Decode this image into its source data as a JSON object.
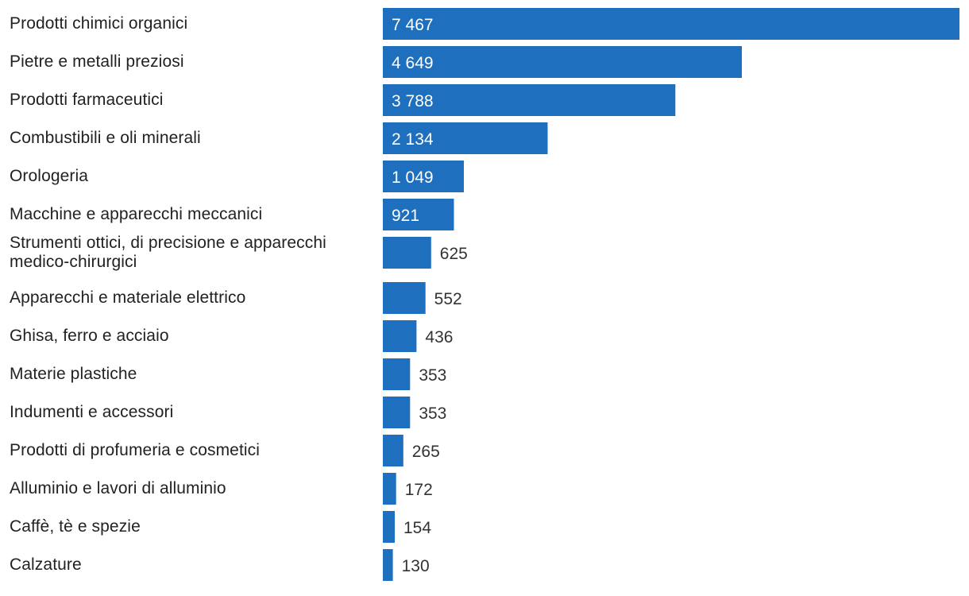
{
  "chart_data": {
    "type": "bar",
    "orientation": "horizontal",
    "categories": [
      "Prodotti chimici organici",
      "Pietre e metalli preziosi",
      "Prodotti farmaceutici",
      "Combustibili e oli minerali",
      "Orologeria",
      "Macchine e apparecchi meccanici",
      "Strumenti ottici, di precisione e apparecchi medico-chirurgici",
      "Apparecchi e materiale elettrico",
      "Ghisa, ferro e acciaio",
      "Materie plastiche",
      "Indumenti e accessori",
      "Prodotti di profumeria e cosmetici",
      "Alluminio e lavori di alluminio",
      "Caffè, tè e spezie",
      "Calzature"
    ],
    "values": [
      7467,
      4649,
      3788,
      2134,
      1049,
      921,
      625,
      552,
      436,
      353,
      353,
      265,
      172,
      154,
      130
    ],
    "value_labels": [
      "7 467",
      "4 649",
      "3 788",
      "2 134",
      "1 049",
      "921",
      "625",
      "552",
      "436",
      "353",
      "353",
      "265",
      "172",
      "154",
      "130"
    ],
    "bar_color": "#1f6fbf",
    "inside_label_color": "#ffffff",
    "outside_label_color": "#333333",
    "label_color": "#222222",
    "xlim": [
      0,
      7467
    ],
    "grid": false,
    "legend": "none"
  }
}
